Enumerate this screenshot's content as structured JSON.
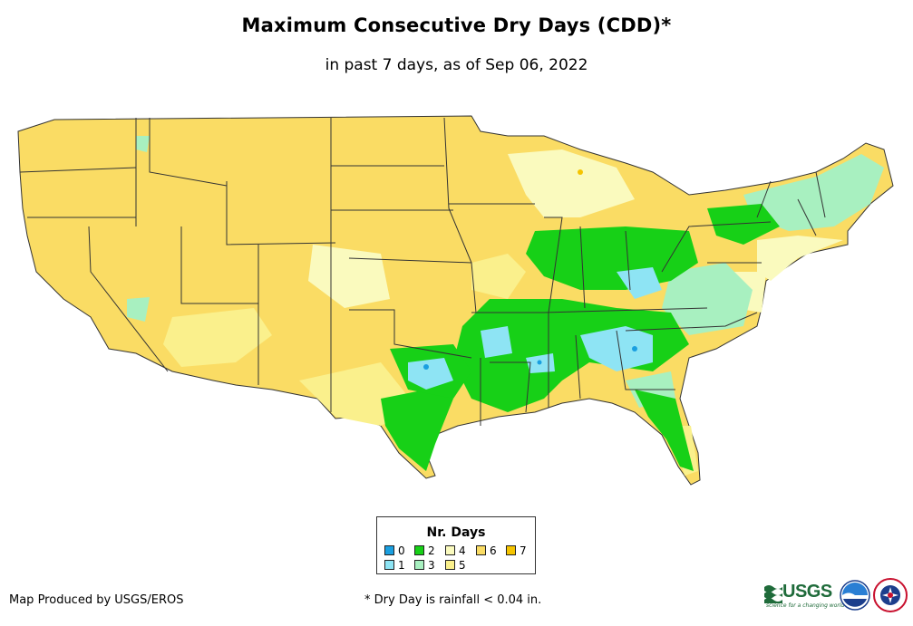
{
  "title": "Maximum Consecutive Dry Days (CDD)*",
  "subtitle": "in past 7 days, as of Sep 06, 2022",
  "legend": {
    "title": "Nr. Days",
    "items": [
      {
        "label": "0",
        "color": "#1a9fe0"
      },
      {
        "label": "1",
        "color": "#8ee4f4"
      },
      {
        "label": "2",
        "color": "#17d017"
      },
      {
        "label": "3",
        "color": "#a8f0c0"
      },
      {
        "label": "4",
        "color": "#fafabe"
      },
      {
        "label": "5",
        "color": "#faf08c"
      },
      {
        "label": "6",
        "color": "#fadc64"
      },
      {
        "label": "7",
        "color": "#f5c400"
      }
    ]
  },
  "credit": "Map Produced by USGS/EROS",
  "footnote": "* Dry Day is rainfall < 0.04 in.",
  "logos": {
    "usgs_name": "USGS",
    "usgs_tagline": "science for a changing world",
    "other": [
      "noaa-logo",
      "national-weather-service-logo"
    ]
  },
  "colors": {
    "state_border": "#333333",
    "background": "#ffffff"
  }
}
